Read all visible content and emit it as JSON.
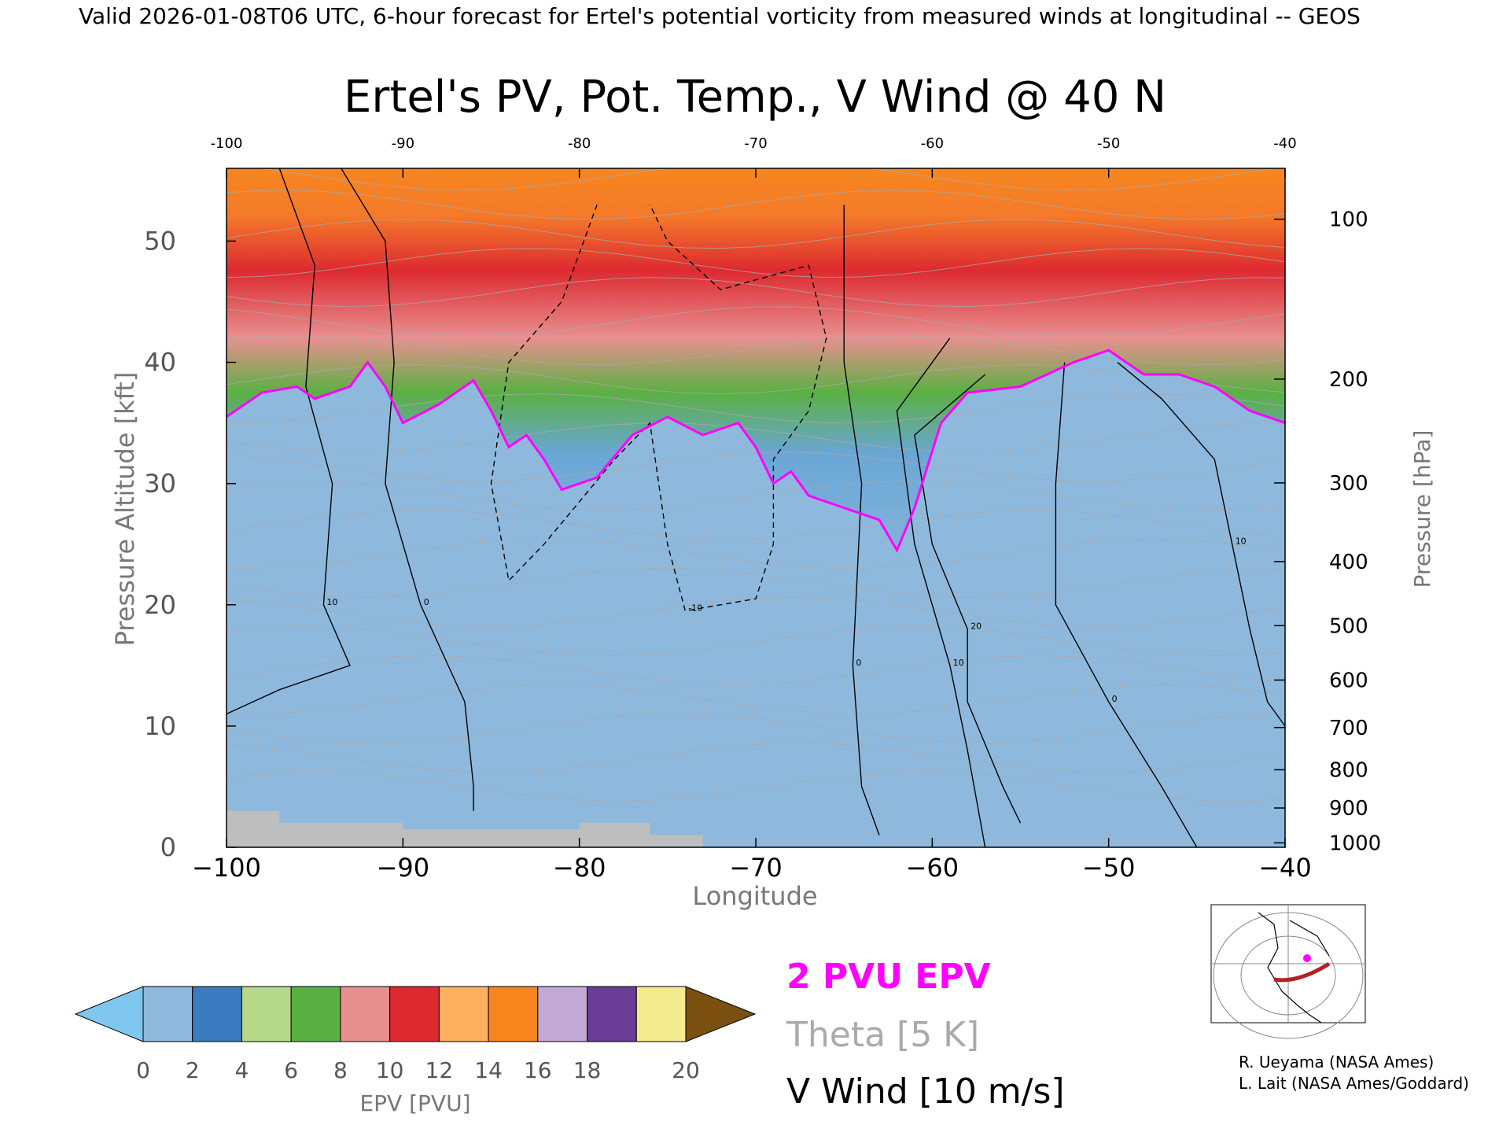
{
  "header": {
    "banner": "Valid 2026-01-08T06 UTC, 6-hour forecast for Ertel's potential vorticity from measured winds at longitudinal -- GEOS"
  },
  "chart_data": {
    "type": "heatmap",
    "title": "Ertel's PV, Pot. Temp., V Wind @ 40 N",
    "xlabel": "Longitude",
    "ylabel": "Pressure Altitude [kft]",
    "ylabel_right": "Pressure [hPa]",
    "xlim": [
      -100,
      -40
    ],
    "ylim": [
      0,
      56
    ],
    "x_ticks": [
      -100,
      -90,
      -80,
      -70,
      -60,
      -50,
      -40
    ],
    "x_tick_labels": [
      "−100",
      "−90",
      "−80",
      "−70",
      "−60",
      "−50",
      "−40"
    ],
    "top_tick_labels": [
      "-100",
      "-90",
      "-80",
      "-70",
      "-60",
      "-50",
      "-40"
    ],
    "y_ticks": [
      0,
      10,
      20,
      30,
      40,
      50
    ],
    "y_tick_labels": [
      "0",
      "10",
      "20",
      "30",
      "40",
      "50"
    ],
    "pressure_ticks": [
      {
        "hpa": 100,
        "label": "100"
      },
      {
        "hpa": 200,
        "label": "200"
      },
      {
        "hpa": 300,
        "label": "300"
      },
      {
        "hpa": 400,
        "label": "400"
      },
      {
        "hpa": 500,
        "label": "500"
      },
      {
        "hpa": 600,
        "label": "600"
      },
      {
        "hpa": 700,
        "label": "700"
      },
      {
        "hpa": 800,
        "label": "800"
      },
      {
        "hpa": 900,
        "label": "900"
      },
      {
        "hpa": 1000,
        "label": "1000"
      }
    ],
    "tropopause_2pvu": [
      {
        "lon": -100,
        "kft": 35.5
      },
      {
        "lon": -98,
        "kft": 37.5
      },
      {
        "lon": -96,
        "kft": 38
      },
      {
        "lon": -95,
        "kft": 37
      },
      {
        "lon": -93,
        "kft": 38
      },
      {
        "lon": -92,
        "kft": 40
      },
      {
        "lon": -91,
        "kft": 38
      },
      {
        "lon": -90,
        "kft": 35
      },
      {
        "lon": -88,
        "kft": 36.5
      },
      {
        "lon": -86,
        "kft": 38.5
      },
      {
        "lon": -85,
        "kft": 36
      },
      {
        "lon": -84,
        "kft": 33
      },
      {
        "lon": -83,
        "kft": 34
      },
      {
        "lon": -82,
        "kft": 32
      },
      {
        "lon": -81,
        "kft": 29.5
      },
      {
        "lon": -79,
        "kft": 30.5
      },
      {
        "lon": -77,
        "kft": 34
      },
      {
        "lon": -75,
        "kft": 35.5
      },
      {
        "lon": -73,
        "kft": 34
      },
      {
        "lon": -71,
        "kft": 35
      },
      {
        "lon": -70,
        "kft": 33
      },
      {
        "lon": -69,
        "kft": 30
      },
      {
        "lon": -68,
        "kft": 31
      },
      {
        "lon": -67,
        "kft": 29
      },
      {
        "lon": -65,
        "kft": 28
      },
      {
        "lon": -63,
        "kft": 27
      },
      {
        "lon": -62,
        "kft": 24.5
      },
      {
        "lon": -61,
        "kft": 28
      },
      {
        "lon": -59.5,
        "kft": 35
      },
      {
        "lon": -58,
        "kft": 37.5
      },
      {
        "lon": -55,
        "kft": 38
      },
      {
        "lon": -52,
        "kft": 40
      },
      {
        "lon": -50,
        "kft": 41
      },
      {
        "lon": -48,
        "kft": 39
      },
      {
        "lon": -46,
        "kft": 39
      },
      {
        "lon": -44,
        "kft": 38
      },
      {
        "lon": -42,
        "kft": 36
      },
      {
        "lon": -40,
        "kft": 35
      }
    ],
    "wind_contours": [
      {
        "label": "0",
        "dashed": false,
        "points": [
          [
            -93.5,
            56
          ],
          [
            -91,
            50
          ],
          [
            -90.5,
            40
          ],
          [
            -91,
            30
          ],
          [
            -89,
            20
          ],
          [
            -86.5,
            12
          ],
          [
            -86,
            5
          ],
          [
            -86,
            3
          ]
        ]
      },
      {
        "label": "10",
        "dashed": false,
        "points": [
          [
            -97,
            56
          ],
          [
            -95,
            48
          ],
          [
            -95.5,
            38
          ],
          [
            -94,
            30
          ],
          [
            -94.5,
            20
          ],
          [
            -93,
            15
          ],
          [
            -97,
            13
          ],
          [
            -100,
            11
          ]
        ]
      },
      {
        "label": "-10",
        "dashed": true,
        "points": [
          [
            -79,
            53
          ],
          [
            -81,
            45
          ],
          [
            -84,
            40
          ],
          [
            -85,
            30
          ],
          [
            -84,
            22
          ],
          [
            -82,
            25
          ],
          [
            -78,
            32
          ],
          [
            -76,
            35
          ],
          [
            -75,
            25
          ],
          [
            -74,
            19.5
          ],
          [
            -70,
            20.5
          ],
          [
            -69,
            25
          ],
          [
            -69,
            32
          ],
          [
            -67,
            36
          ],
          [
            -66,
            42
          ],
          [
            -67,
            48
          ],
          [
            -72,
            46
          ],
          [
            -75,
            50
          ],
          [
            -76,
            53
          ]
        ]
      },
      {
        "label": "0",
        "dashed": false,
        "points": [
          [
            -65,
            53
          ],
          [
            -65,
            40
          ],
          [
            -64,
            30
          ],
          [
            -64.5,
            15
          ],
          [
            -64,
            5
          ],
          [
            -63,
            1
          ]
        ]
      },
      {
        "label": "10",
        "dashed": false,
        "points": [
          [
            -59,
            42
          ],
          [
            -62,
            36
          ],
          [
            -61,
            25
          ],
          [
            -59,
            15
          ],
          [
            -58,
            8
          ],
          [
            -57,
            0
          ]
        ]
      },
      {
        "label": "20",
        "dashed": false,
        "points": [
          [
            -57,
            39
          ],
          [
            -61,
            34
          ],
          [
            -60,
            25
          ],
          [
            -58,
            18
          ],
          [
            -58,
            12
          ],
          [
            -56,
            5
          ],
          [
            -55,
            2
          ]
        ]
      },
      {
        "label": "10",
        "dashed": false,
        "points": [
          [
            -49.5,
            40
          ],
          [
            -47,
            37
          ],
          [
            -44,
            32
          ],
          [
            -43,
            25
          ],
          [
            -42,
            18
          ],
          [
            -41,
            12
          ],
          [
            -40,
            10
          ]
        ]
      },
      {
        "label": "0",
        "dashed": false,
        "points": [
          [
            -52.5,
            40
          ],
          [
            -53,
            30
          ],
          [
            -53,
            20
          ],
          [
            -50,
            12
          ],
          [
            -47,
            5
          ],
          [
            -45,
            0
          ]
        ]
      }
    ],
    "colorbar": {
      "label": "EPV [PVU]",
      "ticks": [
        0,
        2,
        4,
        6,
        8,
        10,
        12,
        14,
        16,
        18,
        20
      ],
      "under_color": "#7fc7ef",
      "over_color": "#7b4f10",
      "colors": [
        "#8eb9dd",
        "#3a7cbf",
        "#b6d98a",
        "#5bb043",
        "#e89090",
        "#dd2a30",
        "#fcb060",
        "#f7861f",
        "#c2a9d6",
        "#6a3d98",
        "#f4ea8e"
      ]
    },
    "legend": [
      {
        "label": "2 PVU EPV",
        "color": "#ff00ff"
      },
      {
        "label": "Theta [5 K]",
        "color": "#aaaaaa"
      },
      {
        "label": "V Wind [10 m/s]",
        "color": "#000000"
      }
    ]
  },
  "credits": {
    "line1": "R. Ueyama (NASA Ames)",
    "line2": "L. Lait (NASA Ames/Goddard)"
  },
  "colors": {
    "tropopause": "#ff00ff",
    "theta": "#aaaaaa",
    "wind": "#000000",
    "troposphere_blue": "#8eb9dd",
    "ground": "#bebebe"
  }
}
